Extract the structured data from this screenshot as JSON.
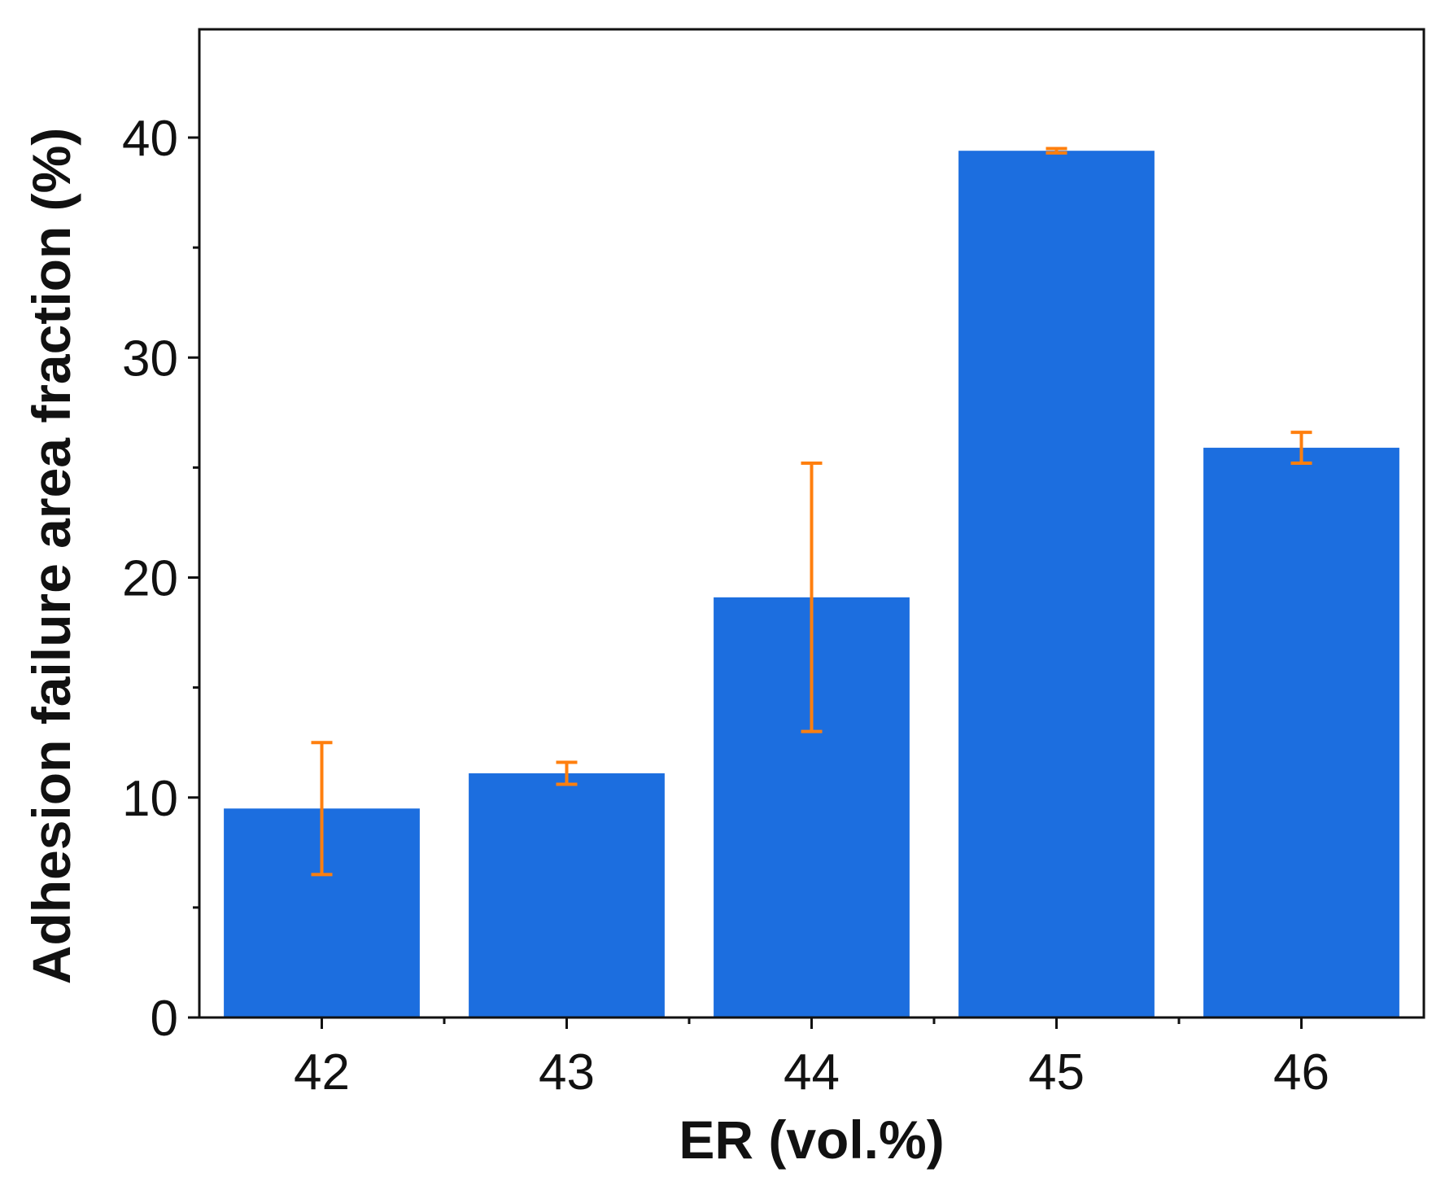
{
  "colors": {
    "bar": "#1c6edf",
    "error": "#ff7f0e",
    "axis": "#111111",
    "background": "#ffffff"
  },
  "chart_data": {
    "type": "bar",
    "title": "",
    "xlabel": "ER (vol.%)",
    "ylabel": "Adhesion failure area fraction (%)",
    "categories": [
      "42",
      "43",
      "44",
      "45",
      "46"
    ],
    "values": [
      9.5,
      11.1,
      19.1,
      39.4,
      25.9
    ],
    "error_low": [
      6.5,
      10.6,
      13.0,
      39.3,
      25.2
    ],
    "error_high": [
      12.5,
      11.6,
      25.2,
      39.5,
      26.6
    ],
    "ylim": [
      0,
      40
    ],
    "yticks": [
      0,
      10,
      20,
      30,
      40
    ],
    "y_minor_step": 5,
    "grid": false,
    "legend": "none"
  }
}
